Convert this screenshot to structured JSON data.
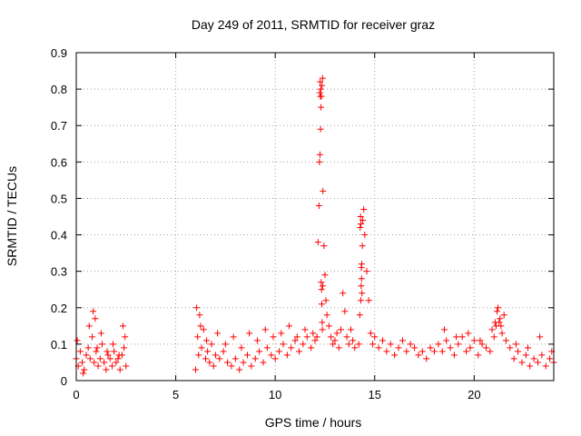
{
  "chart_data": {
    "type": "scatter",
    "title": "Day 249 of 2011, SRMTID for receiver graz",
    "xlabel": "GPS time / hours",
    "ylabel": "SRMTID / TECUs",
    "xlim": [
      0,
      24
    ],
    "ylim": [
      0,
      0.9
    ],
    "xticks": [
      0,
      5,
      10,
      15,
      20
    ],
    "xtick_labels": [
      "0",
      "5",
      "10",
      "15",
      "20"
    ],
    "yticks": [
      0,
      0.1,
      0.2,
      0.3,
      0.4,
      0.5,
      0.6,
      0.7,
      0.8,
      0.9
    ],
    "ytick_labels": [
      "0",
      "0.1",
      "0.2",
      "0.3",
      "0.4",
      "0.5",
      "0.6",
      "0.7",
      "0.8",
      "0.9"
    ],
    "grid": true,
    "marker": "plus",
    "color": "#ff0000",
    "series": [
      {
        "name": "SRMTID",
        "x": [
          0.0,
          0.1,
          0.2,
          0.3,
          0.4,
          0.5,
          0.6,
          0.7,
          0.8,
          0.9,
          1.0,
          1.1,
          1.2,
          1.3,
          1.4,
          1.5,
          1.6,
          1.7,
          1.8,
          1.9,
          2.0,
          2.1,
          2.2,
          2.3,
          2.4,
          2.5,
          0.05,
          0.35,
          0.65,
          0.85,
          0.95,
          1.05,
          1.25,
          1.55,
          1.85,
          2.15,
          2.35,
          2.45,
          6.0,
          6.1,
          6.2,
          6.3,
          6.4,
          6.5,
          6.6,
          6.7,
          6.8,
          6.9,
          7.0,
          7.2,
          7.4,
          7.6,
          7.8,
          8.0,
          8.2,
          8.4,
          8.6,
          8.8,
          9.0,
          9.2,
          9.4,
          9.6,
          9.8,
          10.0,
          10.2,
          10.4,
          10.6,
          10.8,
          11.0,
          11.2,
          11.4,
          11.6,
          11.8,
          12.0,
          6.05,
          6.15,
          6.25,
          6.55,
          7.1,
          7.5,
          7.9,
          8.3,
          8.7,
          9.1,
          9.5,
          9.9,
          10.3,
          10.7,
          11.1,
          11.5,
          11.9,
          12.1,
          12.15,
          12.2,
          12.22,
          12.25,
          12.28,
          12.3,
          12.32,
          12.35,
          12.38,
          12.4,
          12.45,
          12.5,
          12.55,
          12.6,
          12.7,
          12.8,
          12.9,
          13.0,
          13.1,
          13.2,
          13.3,
          13.4,
          13.5,
          13.6,
          13.7,
          13.8,
          13.9,
          14.0,
          12.24,
          12.26,
          12.27,
          12.29,
          12.31,
          12.33,
          12.34,
          12.36,
          12.37,
          12.39,
          14.2,
          14.25,
          14.3,
          14.32,
          14.35,
          14.38,
          14.4,
          14.45,
          14.5,
          14.6,
          14.7,
          14.8,
          14.9,
          15.0,
          15.2,
          15.4,
          15.6,
          15.8,
          16.0,
          16.2,
          16.4,
          16.6,
          16.8,
          17.0,
          17.2,
          17.4,
          17.6,
          17.8,
          18.0,
          14.27,
          14.29,
          14.31,
          14.33,
          14.34,
          14.36,
          18.2,
          18.4,
          18.6,
          18.8,
          19.0,
          19.2,
          19.4,
          19.6,
          19.8,
          20.0,
          20.2,
          20.4,
          20.6,
          20.8,
          21.0,
          21.1,
          21.2,
          21.3,
          21.4,
          21.5,
          21.6,
          21.8,
          22.0,
          22.2,
          22.4,
          22.6,
          22.8,
          23.0,
          23.2,
          23.4,
          23.6,
          23.8,
          24.0,
          18.5,
          19.1,
          19.7,
          20.3,
          20.9,
          21.05,
          21.15,
          21.25,
          21.35,
          22.1,
          22.7,
          23.3,
          23.9
        ],
        "y": [
          0.06,
          0.04,
          0.08,
          0.05,
          0.03,
          0.07,
          0.09,
          0.06,
          0.12,
          0.05,
          0.08,
          0.04,
          0.06,
          0.1,
          0.05,
          0.03,
          0.07,
          0.06,
          0.04,
          0.08,
          0.05,
          0.06,
          0.03,
          0.07,
          0.09,
          0.04,
          0.11,
          0.02,
          0.15,
          0.19,
          0.17,
          0.09,
          0.13,
          0.08,
          0.1,
          0.07,
          0.15,
          0.12,
          0.03,
          0.12,
          0.18,
          0.09,
          0.14,
          0.06,
          0.08,
          0.05,
          0.1,
          0.04,
          0.07,
          0.06,
          0.08,
          0.05,
          0.04,
          0.06,
          0.03,
          0.05,
          0.07,
          0.04,
          0.06,
          0.08,
          0.05,
          0.09,
          0.07,
          0.06,
          0.08,
          0.1,
          0.07,
          0.09,
          0.11,
          0.08,
          0.1,
          0.12,
          0.09,
          0.11,
          0.2,
          0.07,
          0.15,
          0.11,
          0.13,
          0.1,
          0.12,
          0.09,
          0.13,
          0.11,
          0.14,
          0.12,
          0.13,
          0.15,
          0.12,
          0.14,
          0.13,
          0.12,
          0.38,
          0.48,
          0.6,
          0.62,
          0.69,
          0.75,
          0.78,
          0.81,
          0.83,
          0.52,
          0.37,
          0.29,
          0.22,
          0.18,
          0.15,
          0.12,
          0.1,
          0.11,
          0.13,
          0.09,
          0.14,
          0.24,
          0.19,
          0.12,
          0.1,
          0.14,
          0.11,
          0.09,
          0.79,
          0.82,
          0.78,
          0.8,
          0.27,
          0.25,
          0.21,
          0.16,
          0.14,
          0.26,
          0.1,
          0.18,
          0.22,
          0.26,
          0.32,
          0.37,
          0.44,
          0.47,
          0.4,
          0.3,
          0.22,
          0.13,
          0.1,
          0.12,
          0.09,
          0.11,
          0.08,
          0.1,
          0.07,
          0.09,
          0.11,
          0.08,
          0.1,
          0.09,
          0.07,
          0.08,
          0.06,
          0.09,
          0.08,
          0.42,
          0.45,
          0.43,
          0.31,
          0.28,
          0.24,
          0.1,
          0.08,
          0.11,
          0.09,
          0.07,
          0.1,
          0.12,
          0.08,
          0.09,
          0.11,
          0.07,
          0.1,
          0.09,
          0.08,
          0.12,
          0.15,
          0.2,
          0.17,
          0.13,
          0.18,
          0.11,
          0.09,
          0.06,
          0.08,
          0.05,
          0.07,
          0.04,
          0.06,
          0.05,
          0.07,
          0.04,
          0.06,
          0.05,
          0.14,
          0.12,
          0.13,
          0.11,
          0.14,
          0.16,
          0.19,
          0.16,
          0.15,
          0.1,
          0.09,
          0.12,
          0.08
        ]
      }
    ]
  }
}
